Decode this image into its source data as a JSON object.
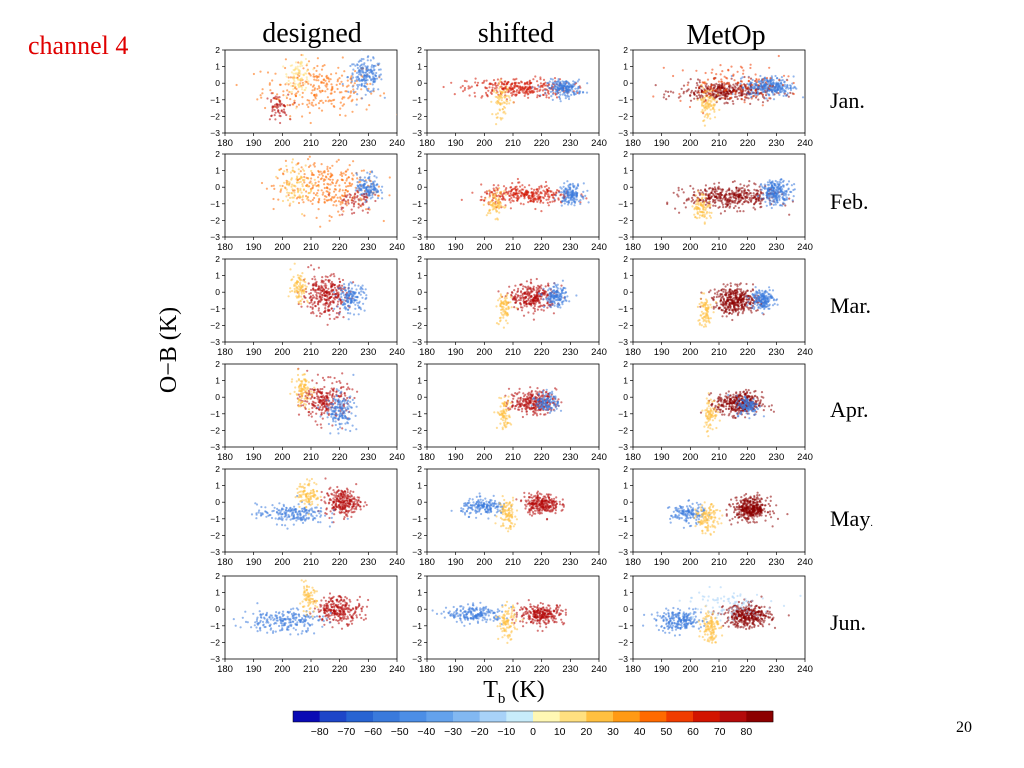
{
  "slide": {
    "title": "channel 4",
    "page_number": "20",
    "title_color": "#e00000"
  },
  "chart_data": {
    "type": "scatter",
    "columns": [
      "designed",
      "shifted",
      "MetOp"
    ],
    "rows": [
      "Jan.",
      "Feb.",
      "Mar.",
      "Apr.",
      "May.",
      "Jun."
    ],
    "ylabel": "O−B (K)",
    "xlabel": "T",
    "xlabel_subscript": "b",
    "xlabel_unit": "(K)",
    "xlim": [
      180,
      240
    ],
    "ylim": [
      -3,
      2
    ],
    "xticks": [
      180,
      190,
      200,
      210,
      220,
      230,
      240
    ],
    "yticks": [
      2,
      1,
      0,
      -1,
      -2,
      -3
    ],
    "grid": false,
    "colorbar": {
      "ticks": [
        "−80",
        "−70",
        "−60",
        "−50",
        "−40",
        "−30",
        "−20",
        "−10",
        "0",
        "10",
        "20",
        "30",
        "40",
        "50",
        "60",
        "70",
        "80"
      ],
      "colors": [
        "#0a0ab4",
        "#1e46c8",
        "#2864d2",
        "#3a7adc",
        "#4c8ee6",
        "#64a2ec",
        "#82b8f2",
        "#a8d2f8",
        "#c8ecfa",
        "#fff8b4",
        "#ffe080",
        "#ffc040",
        "#ff9a14",
        "#ff6a00",
        "#f03c00",
        "#d21400",
        "#b40a0a",
        "#8c0000"
      ]
    },
    "panels": [
      {
        "row": "Jan.",
        "col": "designed",
        "clusters": [
          {
            "cx": 213,
            "cy": -0.3,
            "sx": 10,
            "sy": 0.8,
            "n": 260,
            "val": 45
          },
          {
            "cx": 229,
            "cy": 0.4,
            "sx": 3,
            "sy": 0.5,
            "n": 180,
            "val": -60
          },
          {
            "cx": 206,
            "cy": 0.5,
            "sx": 2,
            "sy": 0.5,
            "n": 90,
            "val": 15
          },
          {
            "cx": 198,
            "cy": -1.5,
            "sx": 2,
            "sy": 0.4,
            "n": 60,
            "val": 75
          }
        ]
      },
      {
        "row": "Jan.",
        "col": "shifted",
        "clusters": [
          {
            "cx": 212,
            "cy": -0.3,
            "sx": 9,
            "sy": 0.3,
            "n": 300,
            "val": 60
          },
          {
            "cx": 228,
            "cy": -0.3,
            "sx": 3,
            "sy": 0.25,
            "n": 200,
            "val": -60
          },
          {
            "cx": 206,
            "cy": -1.0,
            "sx": 1.5,
            "sy": 0.5,
            "n": 80,
            "val": 20
          }
        ]
      },
      {
        "row": "Jan.",
        "col": "MetOp",
        "clusters": [
          {
            "cx": 212,
            "cy": -0.5,
            "sx": 8,
            "sy": 0.3,
            "n": 380,
            "val": 80
          },
          {
            "cx": 228,
            "cy": -0.2,
            "sx": 4,
            "sy": 0.3,
            "n": 280,
            "val": -60
          },
          {
            "cx": 206,
            "cy": -1.2,
            "sx": 1.5,
            "sy": 0.5,
            "n": 90,
            "val": 20
          },
          {
            "cx": 215,
            "cy": 0.0,
            "sx": 10,
            "sy": 0.6,
            "n": 120,
            "val": 50
          }
        ]
      },
      {
        "row": "Feb.",
        "col": "designed",
        "clusters": [
          {
            "cx": 215,
            "cy": 0.0,
            "sx": 9,
            "sy": 0.8,
            "n": 280,
            "val": 40
          },
          {
            "cx": 230,
            "cy": 0.0,
            "sx": 2,
            "sy": 0.4,
            "n": 140,
            "val": -60
          },
          {
            "cx": 205,
            "cy": 0.2,
            "sx": 3,
            "sy": 0.6,
            "n": 100,
            "val": 20
          },
          {
            "cx": 225,
            "cy": -0.8,
            "sx": 3,
            "sy": 0.4,
            "n": 60,
            "val": 75
          }
        ]
      },
      {
        "row": "Feb.",
        "col": "shifted",
        "clusters": [
          {
            "cx": 215,
            "cy": -0.5,
            "sx": 8,
            "sy": 0.3,
            "n": 300,
            "val": 60
          },
          {
            "cx": 230,
            "cy": -0.4,
            "sx": 2,
            "sy": 0.3,
            "n": 150,
            "val": -60
          },
          {
            "cx": 204,
            "cy": -1.0,
            "sx": 1.5,
            "sy": 0.4,
            "n": 80,
            "val": 20
          }
        ]
      },
      {
        "row": "Feb.",
        "col": "MetOp",
        "clusters": [
          {
            "cx": 214,
            "cy": -0.6,
            "sx": 8,
            "sy": 0.35,
            "n": 400,
            "val": 80
          },
          {
            "cx": 230,
            "cy": -0.3,
            "sx": 2.5,
            "sy": 0.35,
            "n": 230,
            "val": -60
          },
          {
            "cx": 204,
            "cy": -1.2,
            "sx": 1.5,
            "sy": 0.4,
            "n": 90,
            "val": 20
          }
        ]
      },
      {
        "row": "Mar.",
        "col": "designed",
        "clusters": [
          {
            "cx": 215,
            "cy": -0.2,
            "sx": 4,
            "sy": 0.6,
            "n": 300,
            "val": 75
          },
          {
            "cx": 224,
            "cy": -0.3,
            "sx": 2.5,
            "sy": 0.4,
            "n": 150,
            "val": -60
          },
          {
            "cx": 206,
            "cy": 0.3,
            "sx": 1.5,
            "sy": 0.5,
            "n": 90,
            "val": 20
          }
        ]
      },
      {
        "row": "Mar.",
        "col": "shifted",
        "clusters": [
          {
            "cx": 217,
            "cy": -0.3,
            "sx": 4,
            "sy": 0.4,
            "n": 280,
            "val": 75
          },
          {
            "cx": 225,
            "cy": -0.3,
            "sx": 2,
            "sy": 0.3,
            "n": 150,
            "val": -60
          },
          {
            "cx": 207,
            "cy": -1.0,
            "sx": 1.2,
            "sy": 0.5,
            "n": 80,
            "val": 20
          }
        ]
      },
      {
        "row": "Mar.",
        "col": "MetOp",
        "clusters": [
          {
            "cx": 216,
            "cy": -0.5,
            "sx": 4,
            "sy": 0.4,
            "n": 380,
            "val": 80
          },
          {
            "cx": 225,
            "cy": -0.4,
            "sx": 2,
            "sy": 0.3,
            "n": 180,
            "val": -60
          },
          {
            "cx": 205,
            "cy": -1.2,
            "sx": 1.2,
            "sy": 0.5,
            "n": 80,
            "val": 20
          }
        ]
      },
      {
        "row": "Apr.",
        "col": "designed",
        "clusters": [
          {
            "cx": 215,
            "cy": -0.2,
            "sx": 4,
            "sy": 0.6,
            "n": 250,
            "val": 70
          },
          {
            "cx": 220,
            "cy": -0.8,
            "sx": 2.5,
            "sy": 0.5,
            "n": 160,
            "val": -60
          },
          {
            "cx": 207,
            "cy": 0.4,
            "sx": 1.5,
            "sy": 0.5,
            "n": 100,
            "val": 20
          }
        ]
      },
      {
        "row": "Apr.",
        "col": "shifted",
        "clusters": [
          {
            "cx": 217,
            "cy": -0.3,
            "sx": 4,
            "sy": 0.35,
            "n": 280,
            "val": 75
          },
          {
            "cx": 222,
            "cy": -0.3,
            "sx": 2,
            "sy": 0.3,
            "n": 120,
            "val": -60
          },
          {
            "cx": 207,
            "cy": -1.0,
            "sx": 1.2,
            "sy": 0.5,
            "n": 80,
            "val": 20
          }
        ]
      },
      {
        "row": "Apr.",
        "col": "MetOp",
        "clusters": [
          {
            "cx": 217,
            "cy": -0.4,
            "sx": 4,
            "sy": 0.35,
            "n": 380,
            "val": 80
          },
          {
            "cx": 220,
            "cy": -0.5,
            "sx": 2,
            "sy": 0.3,
            "n": 120,
            "val": -60
          },
          {
            "cx": 207,
            "cy": -1.0,
            "sx": 1.2,
            "sy": 0.5,
            "n": 80,
            "val": 20
          }
        ]
      },
      {
        "row": "May.",
        "col": "designed",
        "clusters": [
          {
            "cx": 221,
            "cy": 0.0,
            "sx": 3,
            "sy": 0.4,
            "n": 260,
            "val": 75
          },
          {
            "cx": 203,
            "cy": -0.7,
            "sx": 6,
            "sy": 0.3,
            "n": 200,
            "val": -60
          },
          {
            "cx": 209,
            "cy": 0.5,
            "sx": 2,
            "sy": 0.4,
            "n": 100,
            "val": 20
          }
        ]
      },
      {
        "row": "May.",
        "col": "shifted",
        "clusters": [
          {
            "cx": 220,
            "cy": -0.1,
            "sx": 3,
            "sy": 0.3,
            "n": 260,
            "val": 75
          },
          {
            "cx": 200,
            "cy": -0.3,
            "sx": 4,
            "sy": 0.25,
            "n": 180,
            "val": -60
          },
          {
            "cx": 208,
            "cy": -0.7,
            "sx": 1.5,
            "sy": 0.5,
            "n": 100,
            "val": 20
          }
        ]
      },
      {
        "row": "May.",
        "col": "MetOp",
        "clusters": [
          {
            "cx": 221,
            "cy": -0.4,
            "sx": 3,
            "sy": 0.35,
            "n": 380,
            "val": 80
          },
          {
            "cx": 199,
            "cy": -0.7,
            "sx": 3,
            "sy": 0.3,
            "n": 140,
            "val": -60
          },
          {
            "cx": 206,
            "cy": -1.0,
            "sx": 2,
            "sy": 0.4,
            "n": 120,
            "val": 20
          }
        ]
      },
      {
        "row": "Jun.",
        "col": "designed",
        "clusters": [
          {
            "cx": 220,
            "cy": 0.0,
            "sx": 4,
            "sy": 0.4,
            "n": 260,
            "val": 75
          },
          {
            "cx": 200,
            "cy": -0.7,
            "sx": 7,
            "sy": 0.35,
            "n": 220,
            "val": -60
          },
          {
            "cx": 209,
            "cy": 0.6,
            "sx": 1.5,
            "sy": 0.4,
            "n": 80,
            "val": 20
          }
        ]
      },
      {
        "row": "Jun.",
        "col": "shifted",
        "clusters": [
          {
            "cx": 220,
            "cy": -0.3,
            "sx": 4,
            "sy": 0.3,
            "n": 260,
            "val": 75
          },
          {
            "cx": 197,
            "cy": -0.3,
            "sx": 5,
            "sy": 0.25,
            "n": 200,
            "val": -60
          },
          {
            "cx": 208,
            "cy": -0.8,
            "sx": 1.5,
            "sy": 0.5,
            "n": 100,
            "val": 20
          }
        ]
      },
      {
        "row": "Jun.",
        "col": "MetOp",
        "clusters": [
          {
            "cx": 220,
            "cy": -0.4,
            "sx": 4,
            "sy": 0.35,
            "n": 380,
            "val": 80
          },
          {
            "cx": 196,
            "cy": -0.7,
            "sx": 4,
            "sy": 0.3,
            "n": 220,
            "val": -60
          },
          {
            "cx": 207,
            "cy": -1.0,
            "sx": 1.5,
            "sy": 0.5,
            "n": 120,
            "val": 20
          },
          {
            "cx": 212,
            "cy": 0.2,
            "sx": 8,
            "sy": 0.5,
            "n": 100,
            "val": -20
          }
        ]
      }
    ]
  }
}
